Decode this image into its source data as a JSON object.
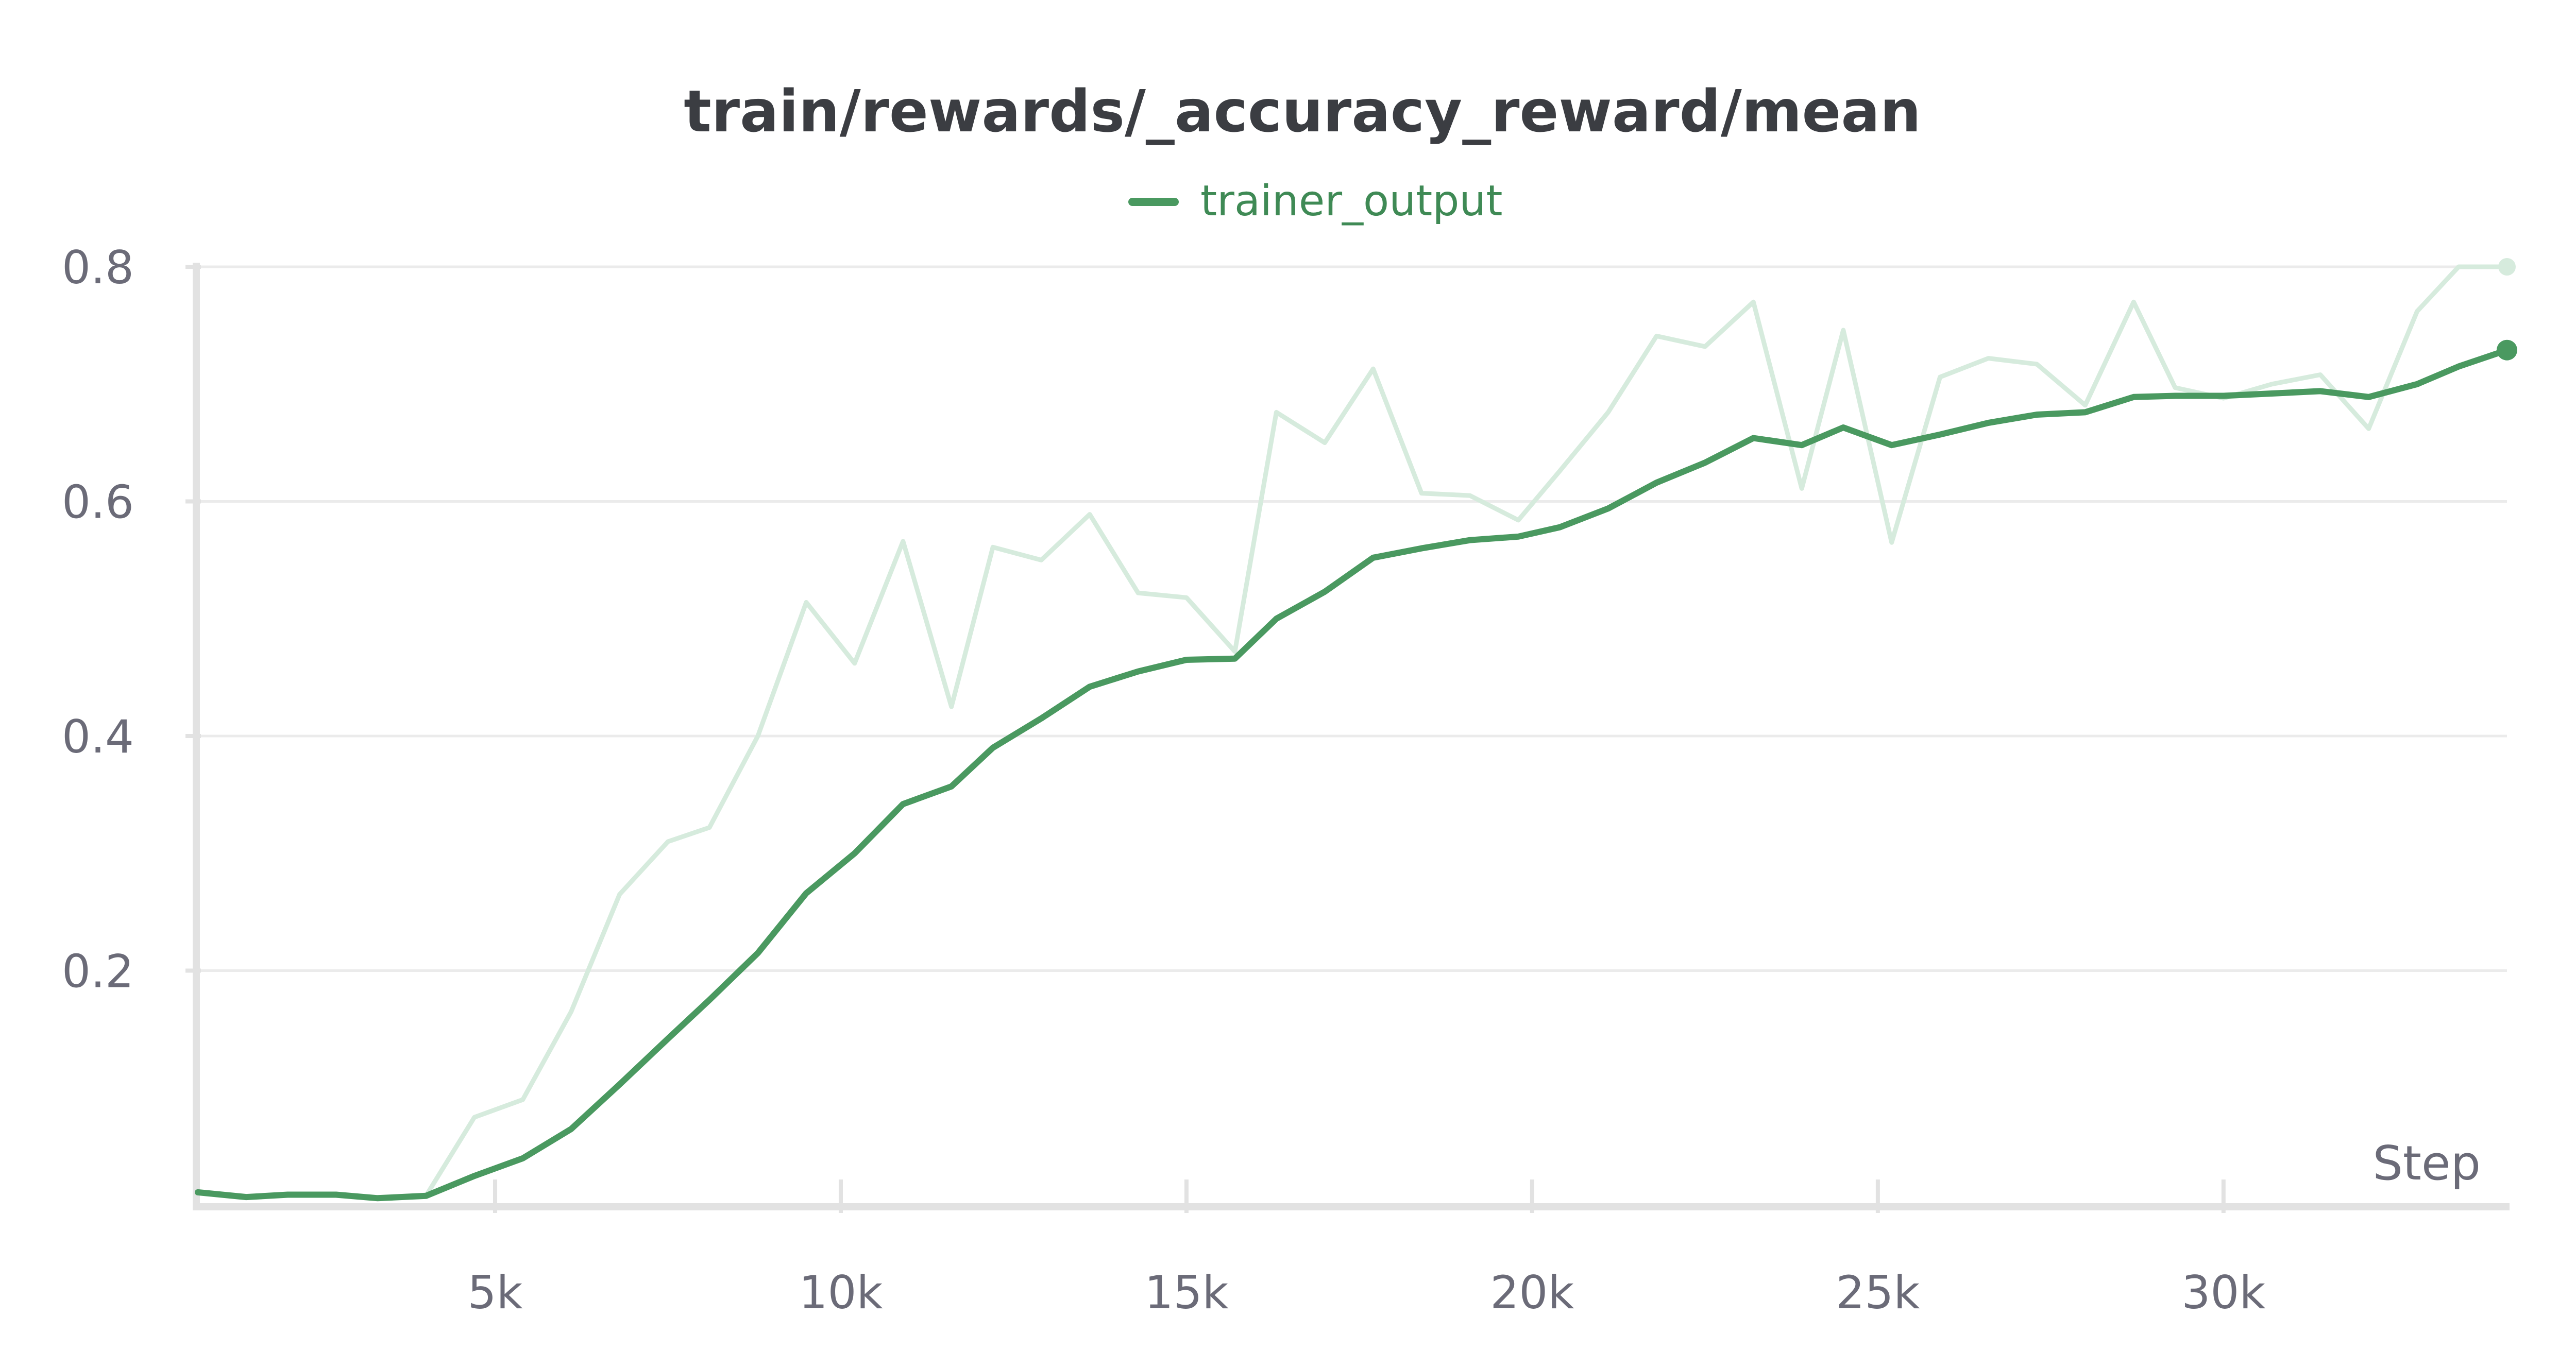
{
  "chart_data": {
    "type": "line",
    "title": "train/rewards/_accuracy_reward/mean",
    "xlabel": "Step",
    "ylabel": "",
    "xlim": [
      700,
      34100
    ],
    "ylim": [
      0.0,
      0.8
    ],
    "grid": true,
    "legend": {
      "position": "top-center",
      "entries": [
        "trainer_output"
      ]
    },
    "x_ticks": [
      {
        "value": 5000,
        "label": "5k"
      },
      {
        "value": 10000,
        "label": "10k"
      },
      {
        "value": 15000,
        "label": "15k"
      },
      {
        "value": 20000,
        "label": "20k"
      },
      {
        "value": 25000,
        "label": "25k"
      },
      {
        "value": 30000,
        "label": "30k"
      }
    ],
    "y_ticks": [
      {
        "value": 0.2,
        "label": "0.2"
      },
      {
        "value": 0.4,
        "label": "0.4"
      },
      {
        "value": 0.6,
        "label": "0.6"
      },
      {
        "value": 0.8,
        "label": "0.8"
      }
    ],
    "x": [
      700,
      1400,
      2000,
      2700,
      3300,
      4000,
      4700,
      5400,
      6100,
      6800,
      7500,
      8100,
      8800,
      9500,
      10200,
      10900,
      11600,
      12200,
      12900,
      13600,
      14300,
      15000,
      15700,
      16300,
      17000,
      17700,
      18400,
      19100,
      19800,
      20400,
      21100,
      21800,
      22500,
      23200,
      23900,
      24500,
      25200,
      25900,
      26600,
      27300,
      28000,
      28700,
      29300,
      30000,
      30700,
      31400,
      32100,
      32800,
      33400,
      34100
    ],
    "series": [
      {
        "name": "trainer_output",
        "color": "#4a9960",
        "values": [
          0.011,
          0.007,
          0.009,
          0.009,
          0.006,
          0.008,
          0.025,
          0.04,
          0.065,
          0.103,
          0.142,
          0.175,
          0.215,
          0.266,
          0.3,
          0.342,
          0.357,
          0.39,
          0.415,
          0.442,
          0.455,
          0.465,
          0.466,
          0.5,
          0.523,
          0.552,
          0.56,
          0.567,
          0.57,
          0.578,
          0.594,
          0.616,
          0.633,
          0.654,
          0.648,
          0.663,
          0.648,
          0.657,
          0.667,
          0.674,
          0.676,
          0.689,
          0.69,
          0.69,
          0.692,
          0.694,
          0.689,
          0.7,
          0.715,
          0.729
        ]
      },
      {
        "name": "",
        "color": "#d6ebdd",
        "values": [
          0.011,
          0.007,
          0.009,
          0.009,
          0.006,
          0.008,
          0.075,
          0.09,
          0.165,
          0.265,
          0.31,
          0.322,
          0.4,
          0.514,
          0.462,
          0.566,
          0.425,
          0.561,
          0.55,
          0.589,
          0.522,
          0.518,
          0.472,
          0.676,
          0.65,
          0.713,
          0.607,
          0.605,
          0.584,
          0.626,
          0.676,
          0.741,
          0.732,
          0.77,
          0.611,
          0.746,
          0.565,
          0.706,
          0.722,
          0.717,
          0.682,
          0.77,
          0.697,
          0.688,
          0.7,
          0.708,
          0.662,
          0.762,
          0.8,
          0.8
        ]
      }
    ]
  }
}
